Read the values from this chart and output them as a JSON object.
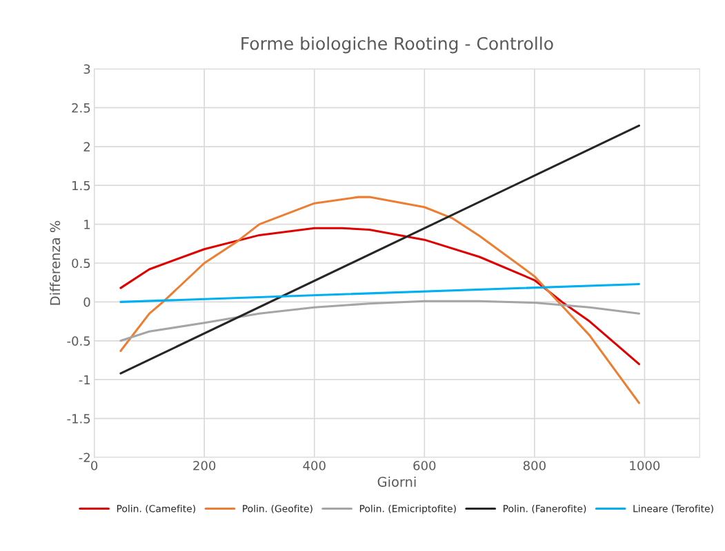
{
  "chart_data": {
    "type": "line",
    "title": "Forme biologiche Rooting - Controllo",
    "xlabel": "Giorni",
    "ylabel": "Differenza %",
    "xlim": [
      0,
      1100
    ],
    "xticks": [
      0,
      200,
      400,
      600,
      800,
      1000
    ],
    "ylim": [
      -2,
      3
    ],
    "yticks": [
      -2,
      -1.5,
      -1,
      -0.5,
      0,
      0.5,
      1,
      1.5,
      2,
      2.5,
      3
    ],
    "grid": true,
    "legend": "bottom",
    "series": [
      {
        "name": "Polin. (Camefite)",
        "color": "#e00000",
        "x": [
          48,
          100,
          200,
          300,
          400,
          450,
          500,
          600,
          700,
          800,
          850,
          900,
          990
        ],
        "values": [
          0.18,
          0.42,
          0.68,
          0.86,
          0.95,
          0.95,
          0.93,
          0.8,
          0.58,
          0.28,
          0.0,
          -0.25,
          -0.8
        ]
      },
      {
        "name": "Polin. (Geofite)",
        "color": "#ed7d31",
        "x": [
          48,
          100,
          125,
          200,
          260,
          300,
          400,
          480,
          500,
          600,
          650,
          700,
          800,
          850,
          900,
          990
        ],
        "values": [
          -0.63,
          -0.15,
          0.0,
          0.5,
          0.78,
          1.0,
          1.27,
          1.35,
          1.35,
          1.22,
          1.08,
          0.85,
          0.33,
          -0.05,
          -0.43,
          -1.3
        ]
      },
      {
        "name": "Polin. (Emicriptofite)",
        "color": "#a5a5a5",
        "x": [
          48,
          100,
          200,
          300,
          400,
          500,
          600,
          700,
          800,
          900,
          990
        ],
        "values": [
          -0.5,
          -0.38,
          -0.27,
          -0.15,
          -0.07,
          -0.02,
          0.01,
          0.01,
          -0.01,
          -0.07,
          -0.15
        ]
      },
      {
        "name": "Polin. (Fanerofite)",
        "color": "#262626",
        "x": [
          48,
          990
        ],
        "values": [
          -0.92,
          2.27
        ]
      },
      {
        "name": "Lineare (Terofite)",
        "color": "#00b0f0",
        "x": [
          48,
          990
        ],
        "values": [
          0.0,
          0.23
        ]
      }
    ]
  }
}
